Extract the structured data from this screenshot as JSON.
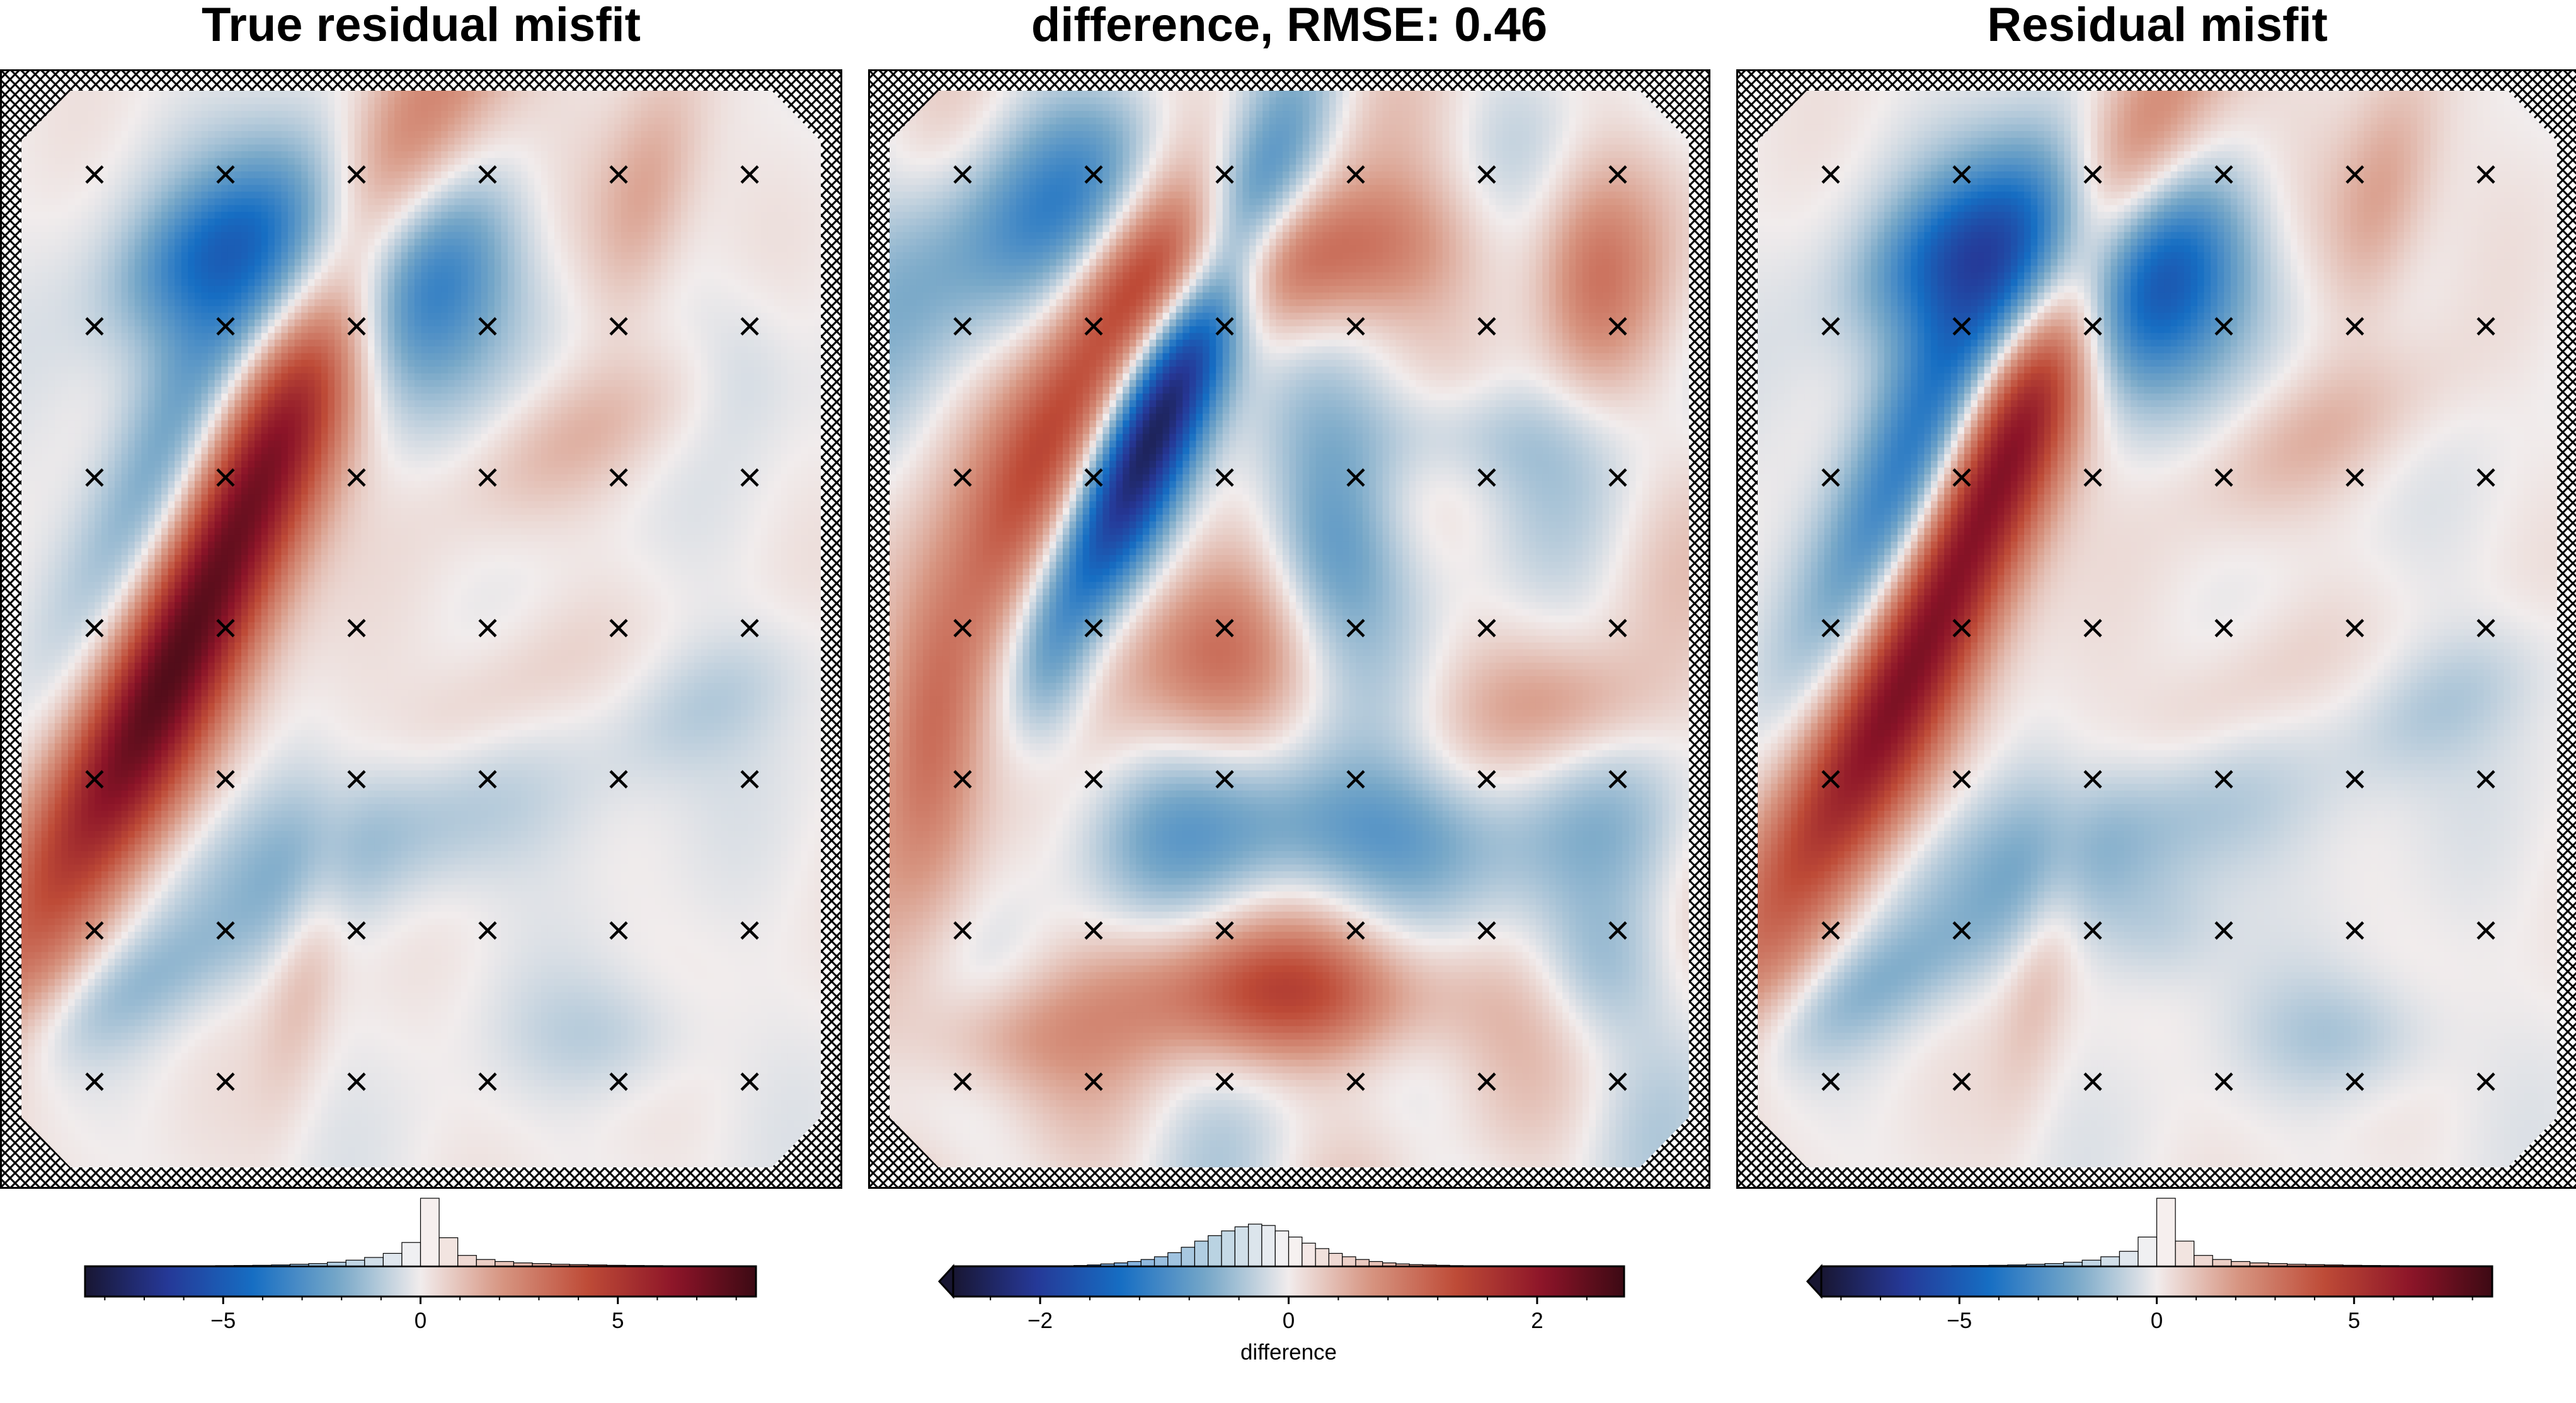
{
  "chart_data": [
    {
      "type": "heatmap",
      "title": "True residual misfit",
      "colormap": "balance (diverging blue-white-red)",
      "cbar": {
        "range": [
          -8.5,
          8.5
        ],
        "ticks": [
          -5,
          0,
          5
        ],
        "tick_labels": [
          "−5",
          "0",
          "5"
        ],
        "label": "",
        "extend_left": false
      },
      "histogram": [
        0.003,
        0.003,
        0.003,
        0.004,
        0.005,
        0.006,
        0.008,
        0.01,
        0.012,
        0.015,
        0.02,
        0.03,
        0.04,
        0.06,
        0.09,
        0.13,
        0.19,
        0.35,
        1.0,
        0.42,
        0.16,
        0.1,
        0.07,
        0.05,
        0.04,
        0.03,
        0.025,
        0.02,
        0.015,
        0.012,
        0.01,
        0.008,
        0.006,
        0.005,
        0.004,
        0.003
      ],
      "constraint_points": "6 columns x 7 rows of x markers",
      "features": [
        {
          "x": 0.33,
          "y": 0.3,
          "sx": 0.055,
          "sy": 0.28,
          "rot": 32,
          "amp": 7.0
        },
        {
          "x": 0.44,
          "y": 0.17,
          "sx": 0.15,
          "sy": 0.08,
          "rot": 0,
          "amp": -6.0
        },
        {
          "x": 0.18,
          "y": 0.36,
          "sx": 0.05,
          "sy": 0.14,
          "rot": 30,
          "amp": -3.2
        },
        {
          "x": 0.12,
          "y": 0.63,
          "sx": 0.055,
          "sy": 0.2,
          "rot": 35,
          "amp": 4.5
        },
        {
          "x": 0.64,
          "y": 0.16,
          "sx": 0.12,
          "sy": 0.06,
          "rot": -35,
          "amp": 1.8
        },
        {
          "x": 0.78,
          "y": 0.1,
          "sx": 0.04,
          "sy": 0.09,
          "rot": 20,
          "amp": 1.6
        },
        {
          "x": 0.7,
          "y": 0.32,
          "sx": 0.12,
          "sy": 0.04,
          "rot": -20,
          "amp": 1.2
        },
        {
          "x": 0.22,
          "y": 0.15,
          "sx": 0.08,
          "sy": 0.04,
          "rot": -25,
          "amp": -1.8
        },
        {
          "x": 0.4,
          "y": 0.7,
          "sx": 0.2,
          "sy": 0.05,
          "rot": -10,
          "amp": -1.6
        },
        {
          "x": 0.15,
          "y": 0.83,
          "sx": 0.14,
          "sy": 0.035,
          "rot": -20,
          "amp": -1.4
        },
        {
          "x": 0.36,
          "y": 0.8,
          "sx": 0.03,
          "sy": 0.1,
          "rot": 15,
          "amp": 1.2
        },
        {
          "x": 0.85,
          "y": 0.57,
          "sx": 0.1,
          "sy": 0.04,
          "rot": -20,
          "amp": -1.0
        },
        {
          "x": 0.6,
          "y": 0.56,
          "sx": 0.12,
          "sy": 0.04,
          "rot": -25,
          "amp": 0.9
        },
        {
          "x": 0.74,
          "y": 0.88,
          "sx": 0.08,
          "sy": 0.04,
          "rot": 0,
          "amp": -0.9
        },
        {
          "x": 0.9,
          "y": 0.25,
          "sx": 0.05,
          "sy": 0.05,
          "rot": 0,
          "amp": -0.7
        }
      ]
    },
    {
      "type": "heatmap",
      "title": "difference, RMSE: 0.46",
      "colormap": "balance (diverging blue-white-red)",
      "cbar": {
        "range": [
          -2.7,
          2.7
        ],
        "ticks": [
          -2,
          0,
          2
        ],
        "tick_labels": [
          "−2",
          "0",
          "2"
        ],
        "label": "difference",
        "extend_left": true
      },
      "histogram": [
        0.0,
        0.0,
        0.0,
        0.0,
        0.0,
        0.0,
        0.003,
        0.005,
        0.008,
        0.012,
        0.02,
        0.035,
        0.05,
        0.07,
        0.1,
        0.14,
        0.2,
        0.28,
        0.37,
        0.45,
        0.52,
        0.58,
        0.62,
        0.6,
        0.52,
        0.43,
        0.34,
        0.26,
        0.19,
        0.14,
        0.1,
        0.07,
        0.05,
        0.035,
        0.025,
        0.02,
        0.015,
        0.01,
        0.008,
        0.006,
        0.004,
        0.003,
        0.002,
        0.0,
        0.0,
        0.0,
        0.0,
        0.0,
        0.0,
        0.0
      ],
      "constraint_points": "6 columns x 7 rows of x markers",
      "features": [
        {
          "x": 0.35,
          "y": 0.28,
          "sx": 0.04,
          "sy": 0.17,
          "rot": 32,
          "amp": -2.6
        },
        {
          "x": 0.24,
          "y": 0.28,
          "sx": 0.05,
          "sy": 0.22,
          "rot": 32,
          "amp": 1.4
        },
        {
          "x": 0.49,
          "y": 0.16,
          "sx": 0.16,
          "sy": 0.05,
          "rot": -5,
          "amp": 1.3
        },
        {
          "x": 0.2,
          "y": 0.12,
          "sx": 0.16,
          "sy": 0.07,
          "rot": -15,
          "amp": -1.0
        },
        {
          "x": 0.57,
          "y": 0.69,
          "sx": 0.2,
          "sy": 0.05,
          "rot": 0,
          "amp": -0.9
        },
        {
          "x": 0.5,
          "y": 0.84,
          "sx": 0.16,
          "sy": 0.045,
          "rot": 0,
          "amp": 1.3
        },
        {
          "x": 0.05,
          "y": 0.6,
          "sx": 0.05,
          "sy": 0.12,
          "rot": 0,
          "amp": 1.0
        },
        {
          "x": 0.55,
          "y": 0.42,
          "sx": 0.06,
          "sy": 0.07,
          "rot": 0,
          "amp": -0.8
        },
        {
          "x": 0.4,
          "y": 0.53,
          "sx": 0.1,
          "sy": 0.06,
          "rot": 0,
          "amp": 0.8
        },
        {
          "x": 0.88,
          "y": 0.18,
          "sx": 0.05,
          "sy": 0.08,
          "rot": 0,
          "amp": 0.7
        },
        {
          "x": 0.2,
          "y": 0.54,
          "sx": 0.04,
          "sy": 0.07,
          "rot": 0,
          "amp": -0.5
        },
        {
          "x": 0.14,
          "y": 0.88,
          "sx": 0.08,
          "sy": 0.04,
          "rot": 0,
          "amp": 0.6
        },
        {
          "x": 0.86,
          "y": 0.57,
          "sx": 0.08,
          "sy": 0.04,
          "rot": 0,
          "amp": 0.5
        },
        {
          "x": 0.7,
          "y": 0.32,
          "sx": 0.1,
          "sy": 0.04,
          "rot": 0,
          "amp": -0.5
        },
        {
          "x": 0.88,
          "y": 0.82,
          "sx": 0.06,
          "sy": 0.05,
          "rot": 0,
          "amp": -0.5
        }
      ]
    },
    {
      "type": "heatmap",
      "title": "Residual misfit",
      "colormap": "balance (diverging blue-white-red)",
      "cbar": {
        "range": [
          -8.5,
          8.5
        ],
        "ticks": [
          -5,
          0,
          5
        ],
        "tick_labels": [
          "−5",
          "0",
          "5"
        ],
        "label": "",
        "extend_left": true
      },
      "histogram": [
        0.003,
        0.003,
        0.003,
        0.004,
        0.005,
        0.006,
        0.008,
        0.01,
        0.012,
        0.015,
        0.02,
        0.03,
        0.04,
        0.06,
        0.09,
        0.14,
        0.22,
        0.43,
        1.0,
        0.37,
        0.16,
        0.1,
        0.07,
        0.05,
        0.04,
        0.03,
        0.025,
        0.02,
        0.015,
        0.012,
        0.01,
        0.008,
        0.006,
        0.005,
        0.004,
        0.003
      ],
      "constraint_points": "6 columns x 7 rows of x markers",
      "features": [
        {
          "x": 0.33,
          "y": 0.29,
          "sx": 0.05,
          "sy": 0.24,
          "rot": 32,
          "amp": 8.0
        },
        {
          "x": 0.44,
          "y": 0.17,
          "sx": 0.14,
          "sy": 0.075,
          "rot": 0,
          "amp": -7.5
        },
        {
          "x": 0.2,
          "y": 0.36,
          "sx": 0.055,
          "sy": 0.16,
          "rot": 30,
          "amp": -5.5
        },
        {
          "x": 0.12,
          "y": 0.63,
          "sx": 0.055,
          "sy": 0.2,
          "rot": 35,
          "amp": 4.8
        },
        {
          "x": 0.64,
          "y": 0.16,
          "sx": 0.12,
          "sy": 0.06,
          "rot": -35,
          "amp": 1.8
        },
        {
          "x": 0.78,
          "y": 0.1,
          "sx": 0.04,
          "sy": 0.09,
          "rot": 20,
          "amp": 1.6
        },
        {
          "x": 0.7,
          "y": 0.32,
          "sx": 0.12,
          "sy": 0.04,
          "rot": -20,
          "amp": 1.2
        },
        {
          "x": 0.22,
          "y": 0.15,
          "sx": 0.08,
          "sy": 0.04,
          "rot": -25,
          "amp": -1.8
        },
        {
          "x": 0.4,
          "y": 0.7,
          "sx": 0.2,
          "sy": 0.05,
          "rot": -10,
          "amp": -1.8
        },
        {
          "x": 0.15,
          "y": 0.83,
          "sx": 0.14,
          "sy": 0.035,
          "rot": -20,
          "amp": -1.6
        },
        {
          "x": 0.36,
          "y": 0.8,
          "sx": 0.03,
          "sy": 0.1,
          "rot": 15,
          "amp": 1.2
        },
        {
          "x": 0.85,
          "y": 0.57,
          "sx": 0.1,
          "sy": 0.04,
          "rot": -20,
          "amp": -1.1
        },
        {
          "x": 0.6,
          "y": 0.56,
          "sx": 0.12,
          "sy": 0.04,
          "rot": -25,
          "amp": 0.9
        },
        {
          "x": 0.74,
          "y": 0.88,
          "sx": 0.08,
          "sy": 0.04,
          "rot": 0,
          "amp": -1.2
        },
        {
          "x": 0.5,
          "y": 0.78,
          "sx": 0.06,
          "sy": 0.04,
          "rot": 0,
          "amp": -1.0
        }
      ]
    }
  ]
}
